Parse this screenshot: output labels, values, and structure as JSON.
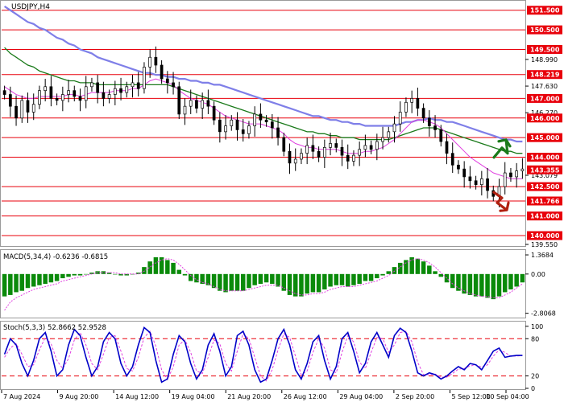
{
  "chart_data": {
    "type": "line",
    "title": "USDJPY,H4",
    "x_tick_labels": [
      "7 Aug 2024",
      "9 Aug 20:00",
      "14 Aug 12:00",
      "19 Aug 04:00",
      "21 Aug 20:00",
      "26 Aug 12:00",
      "29 Aug 04:00",
      "2 Sep 20:00",
      "5 Sep 12:00",
      "10 Sep 04:00"
    ],
    "price_panel": {
      "ylim": [
        139.55,
        151.9
      ],
      "tick_labels": [
        "151.500",
        "150.500",
        "149.500",
        "148.990",
        "148.219",
        "147.630",
        "147.000",
        "146.270",
        "146.000",
        "145.000",
        "144.000",
        "143.355",
        "143.079",
        "142.500",
        "141.766",
        "141.000",
        "140.000",
        "139.550"
      ],
      "highlighted_levels": [
        {
          "value": 151.5,
          "label": "151.500"
        },
        {
          "value": 150.5,
          "label": "150.500"
        },
        {
          "value": 149.5,
          "label": "149.500"
        },
        {
          "value": 148.219,
          "label": "148.219"
        },
        {
          "value": 147.0,
          "label": "147.000"
        },
        {
          "value": 146.0,
          "label": "146.000"
        },
        {
          "value": 145.0,
          "label": "145.000"
        },
        {
          "value": 144.0,
          "label": "144.000"
        },
        {
          "value": 143.355,
          "label": "143.355"
        },
        {
          "value": 142.5,
          "label": "142.500"
        },
        {
          "value": 141.766,
          "label": "141.766"
        },
        {
          "value": 141.0,
          "label": "141.000"
        },
        {
          "value": 140.0,
          "label": "140.000"
        }
      ],
      "plain_levels": [
        {
          "value": 148.99,
          "label": "148.990"
        },
        {
          "value": 147.63,
          "label": "147.630"
        },
        {
          "value": 146.27,
          "label": "146.270"
        },
        {
          "value": 143.079,
          "label": "143.079"
        },
        {
          "value": 139.55,
          "label": "139.550"
        }
      ],
      "key_lines": [
        151.5,
        150.5,
        149.5,
        148.219,
        147.0,
        146.0,
        145.0,
        144.0,
        142.5,
        141.766,
        141.0,
        140.0
      ],
      "closes": [
        147.2,
        146.6,
        146.0,
        146.9,
        146.3,
        146.7,
        147.4,
        147.6,
        147.0,
        146.9,
        147.2,
        147.4,
        147.1,
        146.9,
        147.6,
        147.8,
        147.3,
        147.0,
        147.2,
        147.5,
        147.3,
        147.6,
        147.8,
        147.5,
        148.6,
        149.1,
        148.7,
        148.0,
        147.8,
        147.6,
        146.2,
        146.6,
        146.9,
        146.5,
        146.9,
        146.6,
        145.9,
        145.3,
        145.6,
        145.9,
        145.4,
        145.2,
        145.6,
        146.2,
        145.9,
        145.8,
        145.5,
        145.0,
        144.3,
        143.7,
        143.9,
        144.2,
        144.6,
        144.3,
        144.0,
        144.5,
        144.7,
        144.5,
        144.1,
        143.8,
        144.1,
        144.4,
        144.6,
        144.4,
        144.8,
        145.0,
        145.3,
        145.7,
        146.3,
        146.8,
        147.0,
        146.5,
        146.0,
        145.6,
        145.4,
        144.8,
        144.2,
        143.6,
        143.4,
        143.0,
        142.8,
        142.6,
        142.9,
        142.3,
        142.0,
        142.5,
        143.2,
        143.0,
        143.3,
        143.4
      ],
      "ma_fast": [
        147.6,
        147.4,
        147.2,
        147.1,
        147.0,
        147.0,
        147.1,
        147.1,
        147.1,
        147.1,
        147.1,
        147.2,
        147.2,
        147.1,
        147.2,
        147.3,
        147.3,
        147.3,
        147.3,
        147.4,
        147.4,
        147.4,
        147.5,
        147.5,
        147.7,
        147.9,
        148.0,
        147.9,
        147.8,
        147.7,
        147.4,
        147.2,
        147.0,
        146.9,
        146.8,
        146.7,
        146.5,
        146.3,
        146.1,
        146.0,
        145.9,
        145.8,
        145.7,
        145.7,
        145.7,
        145.6,
        145.5,
        145.4,
        145.2,
        144.9,
        144.7,
        144.6,
        144.5,
        144.5,
        144.4,
        144.4,
        144.4,
        144.4,
        144.3,
        144.2,
        144.2,
        144.2,
        144.3,
        144.3,
        144.4,
        144.5,
        144.7,
        144.9,
        145.2,
        145.5,
        145.8,
        145.9,
        145.9,
        145.8,
        145.7,
        145.5,
        145.2,
        144.9,
        144.6,
        144.3,
        144.0,
        143.8,
        143.6,
        143.4,
        143.2,
        143.1,
        143.0,
        142.9,
        142.9,
        142.9
      ],
      "ma_mid": [
        149.6,
        149.3,
        149.1,
        148.9,
        148.7,
        148.6,
        148.4,
        148.3,
        148.2,
        148.1,
        148.0,
        147.9,
        147.9,
        147.8,
        147.8,
        147.8,
        147.7,
        147.7,
        147.7,
        147.7,
        147.7,
        147.7,
        147.7,
        147.7,
        147.7,
        147.7,
        147.7,
        147.7,
        147.7,
        147.6,
        147.5,
        147.4,
        147.3,
        147.2,
        147.1,
        147.0,
        146.9,
        146.8,
        146.7,
        146.6,
        146.5,
        146.4,
        146.3,
        146.2,
        146.1,
        146.0,
        145.9,
        145.8,
        145.7,
        145.6,
        145.5,
        145.4,
        145.3,
        145.3,
        145.2,
        145.2,
        145.1,
        145.1,
        145.0,
        145.0,
        145.0,
        144.9,
        144.9,
        144.9,
        144.9,
        144.9,
        144.9,
        145.0,
        145.1,
        145.2,
        145.3,
        145.4,
        145.5,
        145.5,
        145.5,
        145.4,
        145.3,
        145.2,
        145.1,
        145.0,
        144.9,
        144.8,
        144.7,
        144.6,
        144.5,
        144.4,
        144.3,
        144.3,
        144.2,
        144.2
      ],
      "ma_slow": [
        151.7,
        151.5,
        151.3,
        151.1,
        150.9,
        150.8,
        150.6,
        150.5,
        150.3,
        150.1,
        150.0,
        149.8,
        149.7,
        149.5,
        149.4,
        149.3,
        149.1,
        149.0,
        148.9,
        148.8,
        148.7,
        148.6,
        148.5,
        148.4,
        148.3,
        148.3,
        148.2,
        148.2,
        148.1,
        148.1,
        148.0,
        148.0,
        147.9,
        147.9,
        147.8,
        147.8,
        147.7,
        147.7,
        147.6,
        147.5,
        147.4,
        147.3,
        147.2,
        147.1,
        147.0,
        146.9,
        146.8,
        146.7,
        146.6,
        146.5,
        146.4,
        146.3,
        146.2,
        146.1,
        146.1,
        146.0,
        145.9,
        145.9,
        145.8,
        145.8,
        145.7,
        145.7,
        145.6,
        145.6,
        145.6,
        145.6,
        145.6,
        145.6,
        145.7,
        145.8,
        145.8,
        145.9,
        145.9,
        146.0,
        145.9,
        145.9,
        145.8,
        145.8,
        145.7,
        145.6,
        145.5,
        145.4,
        145.3,
        145.2,
        145.1,
        145.0,
        144.9,
        144.9,
        144.8,
        144.8
      ]
    },
    "macd_panel": {
      "label": "MACD(5,34,4) -0.6236 -0.6815",
      "ylim": [
        -3.0,
        1.6
      ],
      "tick_labels": [
        "1.3684",
        "0.00",
        "-2.8068"
      ],
      "tick_values": [
        1.3684,
        0.0,
        -2.8068
      ],
      "histogram": [
        -1.6,
        -1.5,
        -1.3,
        -1.2,
        -1.0,
        -0.9,
        -0.8,
        -0.7,
        -0.6,
        -0.5,
        -0.3,
        -0.2,
        -0.1,
        -0.1,
        0.0,
        0.1,
        0.2,
        0.2,
        0.1,
        0.0,
        -0.1,
        -0.1,
        0.0,
        0.1,
        0.5,
        0.9,
        1.2,
        1.2,
        1.0,
        0.8,
        0.3,
        -0.1,
        -0.5,
        -0.6,
        -0.7,
        -0.8,
        -1.0,
        -1.2,
        -1.3,
        -1.2,
        -1.2,
        -1.2,
        -1.0,
        -0.8,
        -0.7,
        -0.6,
        -0.7,
        -0.9,
        -1.2,
        -1.5,
        -1.6,
        -1.6,
        -1.4,
        -1.3,
        -1.3,
        -1.1,
        -0.9,
        -0.8,
        -0.8,
        -0.9,
        -0.8,
        -0.7,
        -0.5,
        -0.5,
        -0.3,
        -0.1,
        0.2,
        0.5,
        0.8,
        1.0,
        1.2,
        1.1,
        0.9,
        0.6,
        0.2,
        -0.2,
        -0.6,
        -1.0,
        -1.2,
        -1.4,
        -1.5,
        -1.6,
        -1.6,
        -1.7,
        -1.8,
        -1.6,
        -1.3,
        -1.1,
        -0.9,
        -0.6
      ],
      "signal": [
        -2.6,
        -2.0,
        -1.7,
        -1.5,
        -1.3,
        -1.1,
        -1.0,
        -0.9,
        -0.8,
        -0.7,
        -0.5,
        -0.4,
        -0.3,
        -0.2,
        -0.1,
        0.0,
        0.1,
        0.1,
        0.1,
        0.1,
        0.0,
        0.0,
        0.0,
        0.0,
        0.2,
        0.5,
        0.8,
        1.0,
        1.1,
        1.0,
        0.7,
        0.3,
        -0.1,
        -0.4,
        -0.6,
        -0.7,
        -0.9,
        -1.1,
        -1.2,
        -1.2,
        -1.2,
        -1.2,
        -1.1,
        -1.0,
        -0.9,
        -0.8,
        -0.8,
        -0.8,
        -1.0,
        -1.2,
        -1.4,
        -1.5,
        -1.5,
        -1.4,
        -1.4,
        -1.3,
        -1.1,
        -1.0,
        -0.9,
        -0.9,
        -0.9,
        -0.8,
        -0.7,
        -0.6,
        -0.5,
        -0.3,
        -0.1,
        0.2,
        0.5,
        0.8,
        1.0,
        1.1,
        1.0,
        0.8,
        0.5,
        0.1,
        -0.3,
        -0.7,
        -1.0,
        -1.2,
        -1.4,
        -1.5,
        -1.6,
        -1.6,
        -1.7,
        -1.7,
        -1.5,
        -1.3,
        -1.0,
        -0.7
      ]
    },
    "stoch_panel": {
      "label": "Stoch(5,3,3) 52.8662 52.9528",
      "ylim": [
        0,
        105
      ],
      "tick_labels": [
        "100",
        "80",
        "20",
        "0"
      ],
      "tick_values": [
        100,
        80,
        20,
        0
      ],
      "levels": [
        80,
        20
      ],
      "k": [
        55,
        80,
        70,
        40,
        20,
        45,
        80,
        90,
        60,
        20,
        30,
        70,
        95,
        85,
        50,
        20,
        35,
        75,
        90,
        80,
        40,
        20,
        35,
        70,
        98,
        90,
        45,
        10,
        15,
        55,
        85,
        75,
        40,
        15,
        30,
        70,
        88,
        60,
        20,
        35,
        85,
        92,
        70,
        30,
        10,
        15,
        45,
        80,
        95,
        70,
        30,
        15,
        40,
        75,
        85,
        45,
        15,
        35,
        80,
        90,
        60,
        25,
        40,
        75,
        90,
        70,
        50,
        85,
        97,
        90,
        60,
        25,
        20,
        25,
        22,
        15,
        20,
        28,
        35,
        30,
        40,
        38,
        30,
        45,
        60,
        65,
        50,
        52,
        53,
        53
      ],
      "d": [
        50,
        65,
        72,
        55,
        35,
        38,
        62,
        82,
        72,
        45,
        32,
        48,
        78,
        90,
        70,
        40,
        30,
        55,
        82,
        85,
        60,
        32,
        28,
        50,
        82,
        92,
        68,
        30,
        14,
        35,
        70,
        78,
        58,
        28,
        24,
        50,
        78,
        72,
        40,
        28,
        60,
        88,
        80,
        50,
        20,
        12,
        30,
        62,
        88,
        82,
        52,
        22,
        28,
        58,
        80,
        65,
        30,
        25,
        58,
        85,
        75,
        42,
        32,
        58,
        82,
        80,
        58,
        70,
        90,
        92,
        75,
        42,
        22,
        22,
        23,
        18,
        18,
        24,
        31,
        32,
        36,
        38,
        34,
        38,
        52,
        62,
        58,
        52,
        52,
        53
      ]
    },
    "colors": {
      "candles": "#000000",
      "level_line": "#e8000b",
      "highlight_box": "#e8000b",
      "ma_fast": "#e040e0",
      "ma_mid": "#1a7a1a",
      "ma_slow": "#7f7fe8",
      "macd_hist": "#0a8a0a",
      "macd_signal": "#e040e0",
      "stoch_k": "#0000c8",
      "stoch_d": "#e040e0",
      "stoch_level": "#e8000b",
      "arrow_up": "#1a7a1a",
      "arrow_down": "#b02010",
      "frame": "#9a9a9a"
    },
    "arrows": [
      {
        "name": "up-arrow-icon",
        "direction": "up",
        "value": 144.4
      },
      {
        "name": "down-arrow-icon",
        "direction": "down",
        "value": 141.8
      }
    ]
  }
}
